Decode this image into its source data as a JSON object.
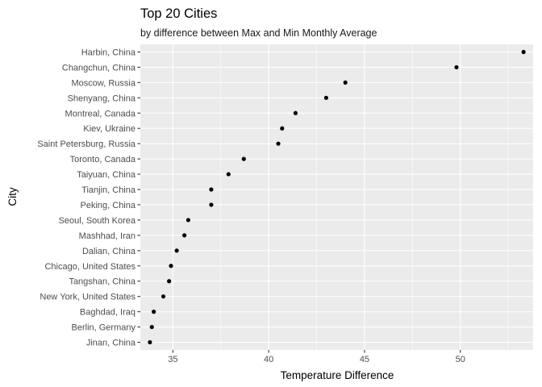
{
  "chart_data": {
    "type": "scatter",
    "title": "Top 20 Cities",
    "subtitle": "by difference between Max and Min Monthly Average",
    "xlabel": "Temperature Difference",
    "ylabel": "City",
    "xlim": [
      33.3,
      53.8
    ],
    "xticks": [
      35,
      40,
      45,
      50
    ],
    "xtick_labels": [
      "35",
      "40",
      "45",
      "50"
    ],
    "grid": true,
    "legend": "none",
    "point_color": "#000000",
    "panel_color": "#ebebeb",
    "grid_color": "#ffffff",
    "categories": [
      "Harbin, China",
      "Changchun, China",
      "Moscow, Russia",
      "Shenyang, China",
      "Montreal, Canada",
      "Kiev, Ukraine",
      "Saint Petersburg, Russia",
      "Toronto, Canada",
      "Taiyuan, China",
      "Tianjin, China",
      "Peking, China",
      "Seoul, South Korea",
      "Mashhad, Iran",
      "Dalian, China",
      "Chicago, United States",
      "Tangshan, China",
      "New York, United States",
      "Baghdad, Iraq",
      "Berlin, Germany",
      "Jinan, China"
    ],
    "values": [
      53.3,
      49.8,
      44.0,
      43.0,
      41.4,
      40.7,
      40.5,
      38.7,
      37.9,
      37.0,
      37.0,
      35.8,
      35.6,
      35.2,
      34.9,
      34.8,
      34.5,
      34.0,
      33.9,
      33.8
    ]
  }
}
